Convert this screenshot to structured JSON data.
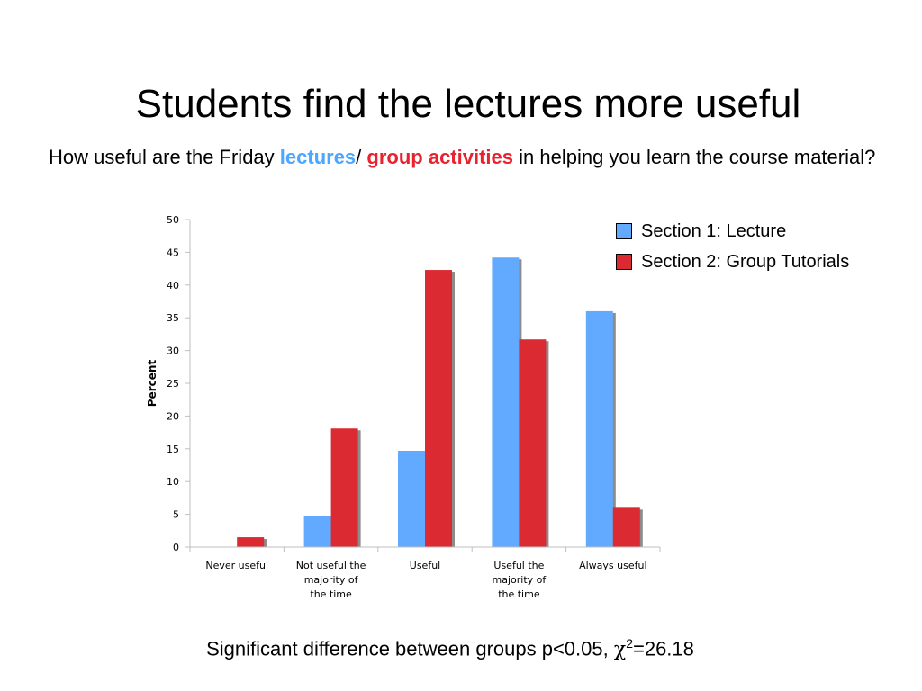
{
  "slide": {
    "title": "Students find the lectures more useful",
    "question_part1": "How useful are the Friday ",
    "question_lectures": "lectures",
    "question_slash": "/ ",
    "question_group": "group activities",
    "question_part2": " in helping you learn the course material?",
    "footnote_text": "Significant difference between groups p<0.05, ",
    "footnote_chi": "χ",
    "footnote_sup": "2",
    "footnote_value": "=26.18"
  },
  "colors": {
    "lecture": "#62aaff",
    "tutorial": "#dc2a33",
    "shadow": "#8c8c8c",
    "axis": "#bfbfbf"
  },
  "chart_data": {
    "type": "bar",
    "ylabel": "Percent",
    "xlabel": "",
    "ylim": [
      0,
      50
    ],
    "yticks": [
      "0",
      "5",
      "10",
      "15",
      "20",
      "25",
      "30",
      "35",
      "40",
      "45",
      "50"
    ],
    "categories": [
      [
        "Never useful"
      ],
      [
        "Not useful the",
        "majority of",
        "the time"
      ],
      [
        "Useful"
      ],
      [
        "Useful the",
        "majority of",
        "the time"
      ],
      [
        "Always useful"
      ]
    ],
    "series": [
      {
        "name": "Section 1: Lecture",
        "values": [
          0,
          4.8,
          14.7,
          44.2,
          36
        ]
      },
      {
        "name": "Section 2: Group Tutorials",
        "values": [
          1.5,
          18.1,
          42.3,
          31.7,
          6
        ]
      }
    ],
    "legend_position": "top-right",
    "grid": false
  }
}
